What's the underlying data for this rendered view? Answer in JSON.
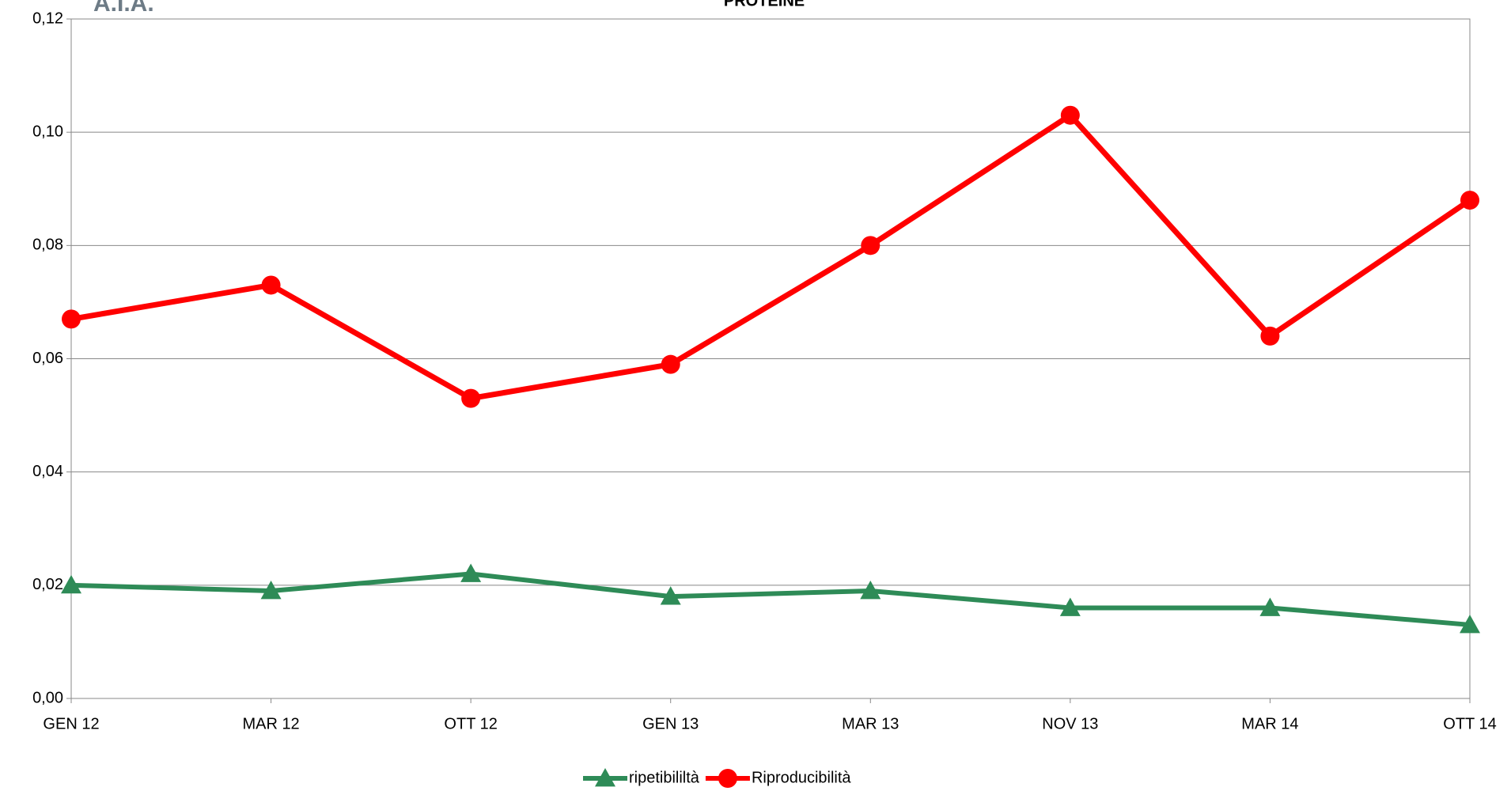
{
  "chart_data": {
    "type": "line",
    "title": "PROTEINE",
    "logo": "A.I.A.",
    "categories": [
      "GEN 12",
      "MAR 12",
      "OTT 12",
      "GEN 13",
      "MAR 13",
      "NOV 13",
      "MAR 14",
      "OTT 14"
    ],
    "series": [
      {
        "name": "ripetibililtà",
        "color": "#2e8b57",
        "marker": "triangle",
        "values": [
          0.02,
          0.019,
          0.022,
          0.018,
          0.019,
          0.016,
          0.016,
          0.013
        ]
      },
      {
        "name": "Riproducibilità",
        "color": "#ff0000",
        "marker": "circle",
        "values": [
          0.067,
          0.073,
          0.053,
          0.059,
          0.08,
          0.103,
          0.064,
          0.088
        ]
      }
    ],
    "ylim": [
      0,
      0.12
    ],
    "yticks": [
      {
        "value": 0,
        "label": "0,00"
      },
      {
        "value": 0.02,
        "label": "0,02"
      },
      {
        "value": 0.04,
        "label": "0,04"
      },
      {
        "value": 0.06,
        "label": "0,06"
      },
      {
        "value": 0.08,
        "label": "0,08"
      },
      {
        "value": 0.1,
        "label": "0,10"
      },
      {
        "value": 0.12,
        "label": "0,12"
      }
    ],
    "grid": true,
    "legend": "bottom"
  }
}
